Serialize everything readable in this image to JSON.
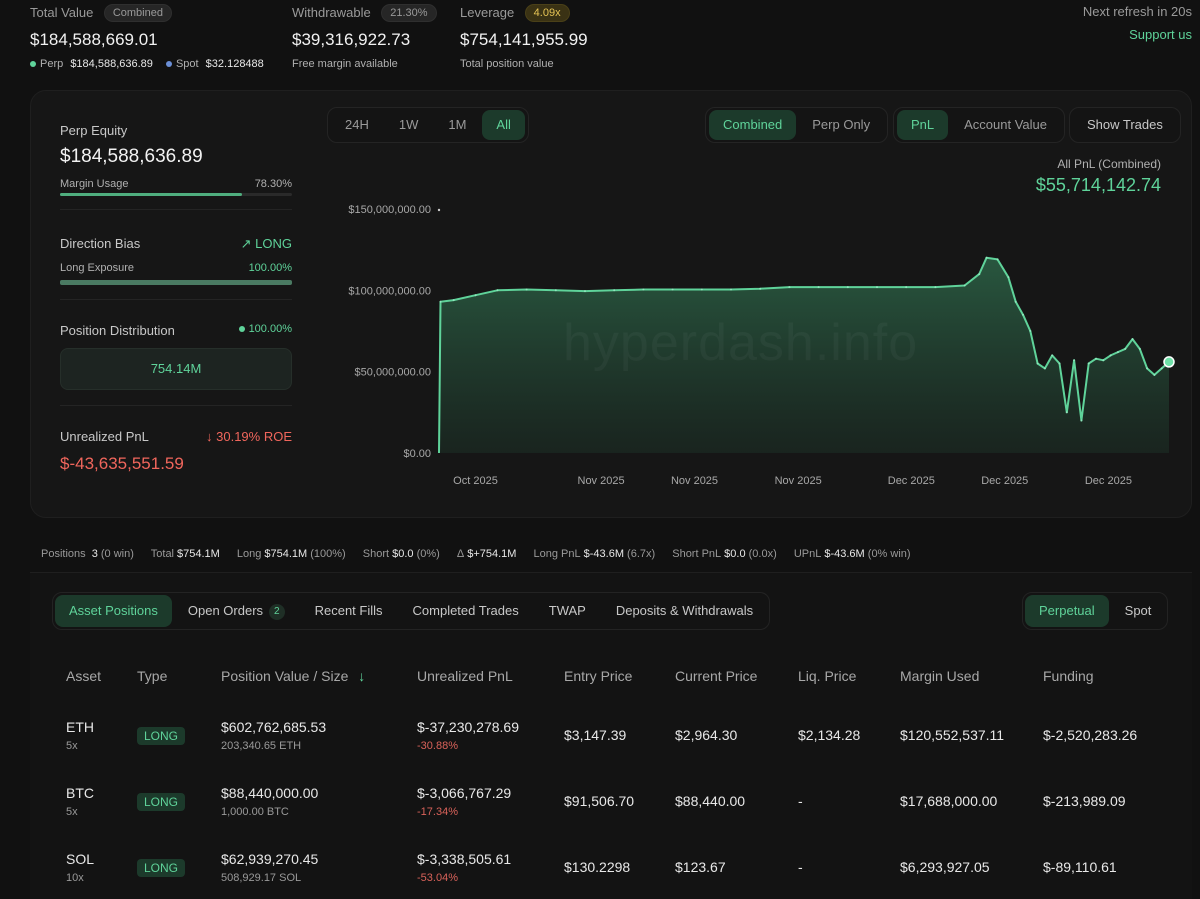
{
  "summary": {
    "total_value": {
      "label": "Total Value",
      "tag": "Combined",
      "value": "$184,588,669.01",
      "perp_label": "Perp",
      "perp_value": "$184,588,636.89",
      "spot_label": "Spot",
      "spot_value": "$32.128488"
    },
    "withdrawable": {
      "label": "Withdrawable",
      "tag": "21.30%",
      "value": "$39,316,922.73",
      "sub": "Free margin available"
    },
    "leverage": {
      "label": "Leverage",
      "tag": "4.09x",
      "value": "$754,141,955.99",
      "sub": "Total position value"
    },
    "refresh": "Next refresh in 20s",
    "support": "Support us"
  },
  "left": {
    "perp_equity_label": "Perp Equity",
    "perp_equity_value": "$184,588,636.89",
    "margin_usage_label": "Margin Usage",
    "margin_usage_value": "78.30%",
    "margin_usage_fraction": 0.783,
    "direction_label": "Direction Bias",
    "direction_value": "LONG",
    "long_exposure_label": "Long Exposure",
    "long_exposure_value": "100.00%",
    "long_exposure_fraction": 1.0,
    "distribution_label": "Position Distribution",
    "distribution_value": "100.00%",
    "distribution_box": "754.14M",
    "upnl_label": "Unrealized PnL",
    "upnl_roe": "30.19% ROE",
    "upnl_value": "$-43,635,551.59"
  },
  "chart_controls": {
    "ranges": [
      "24H",
      "1W",
      "1M",
      "All"
    ],
    "active_range": "All",
    "modes": [
      "Combined",
      "Perp Only"
    ],
    "active_mode": "Combined",
    "metrics": [
      "PnL",
      "Account Value"
    ],
    "active_metric": "PnL",
    "show_trades": "Show Trades",
    "pnl_label": "All PnL (Combined)",
    "pnl_value": "$55,714,142.74",
    "watermark": "hyperdash.info"
  },
  "chart_data": {
    "type": "area",
    "y_ticks": [
      "$150,000,000.00",
      "$100,000,000.00",
      "$50,000,000.00",
      "$0.00"
    ],
    "x_ticks": [
      "Oct 2025",
      "Nov 2025",
      "Nov 2025",
      "Nov 2025",
      "Dec 2025",
      "Dec 2025",
      "Dec 2025"
    ],
    "ylim": [
      0,
      150000000
    ],
    "x": [
      0,
      0.2,
      2,
      5,
      8,
      12,
      16,
      20,
      24,
      28,
      32,
      36,
      40,
      44,
      48,
      52,
      56,
      60,
      64,
      68,
      72,
      74,
      75,
      76.5,
      78,
      79,
      80,
      81,
      82,
      83,
      84,
      85,
      86,
      87,
      88,
      89,
      90,
      91,
      92,
      93,
      94,
      95,
      96,
      97,
      98,
      99,
      100
    ],
    "values": [
      0,
      93000000,
      94000000,
      97000000,
      100000000,
      100500000,
      100000000,
      99500000,
      100000000,
      100500000,
      100500000,
      100500000,
      100500000,
      101000000,
      102000000,
      102000000,
      102000000,
      102000000,
      102000000,
      102000000,
      103000000,
      110000000,
      120000000,
      119000000,
      108000000,
      93000000,
      85000000,
      75000000,
      55000000,
      52000000,
      60000000,
      55000000,
      25000000,
      57000000,
      20000000,
      55000000,
      58000000,
      57000000,
      60000000,
      62000000,
      64000000,
      70000000,
      64000000,
      52000000,
      48000000,
      52000000,
      56000000
    ],
    "grid": false,
    "legend": "none"
  },
  "stats": {
    "positions_label": "Positions",
    "positions_value": "3",
    "positions_win": "(0 win)",
    "total_label": "Total",
    "total_value": "$754.1M",
    "long_label": "Long",
    "long_value": "$754.1M",
    "long_pct": "(100%)",
    "short_label": "Short",
    "short_value": "$0.0",
    "short_pct": "(0%)",
    "delta_label": "Δ",
    "delta_value": "$+754.1M",
    "long_pnl_label": "Long PnL",
    "long_pnl_value": "$-43.6M",
    "long_pnl_x": "(6.7x)",
    "short_pnl_label": "Short PnL",
    "short_pnl_value": "$0.0",
    "short_pnl_x": "(0.0x)",
    "upnl_label": "UPnL",
    "upnl_value": "$-43.6M",
    "upnl_win": "(0% win)"
  },
  "tabs": {
    "items": [
      "Asset Positions",
      "Open Orders",
      "Recent Fills",
      "Completed Trades",
      "TWAP",
      "Deposits & Withdrawals"
    ],
    "open_orders_count": "2",
    "market": [
      "Perpetual",
      "Spot"
    ]
  },
  "table": {
    "headers": [
      "Asset",
      "Type",
      "Position Value / Size",
      "Unrealized PnL",
      "Entry Price",
      "Current Price",
      "Liq. Price",
      "Margin Used",
      "Funding"
    ],
    "rows": [
      {
        "asset": "ETH",
        "lev": "5x",
        "type": "LONG",
        "value": "$602,762,685.53",
        "size": "203,340.65 ETH",
        "upnl": "$-37,230,278.69",
        "upnl_pct": "-30.88%",
        "entry": "$3,147.39",
        "current": "$2,964.30",
        "liq": "$2,134.28",
        "margin": "$120,552,537.11",
        "funding": "$-2,520,283.26"
      },
      {
        "asset": "BTC",
        "lev": "5x",
        "type": "LONG",
        "value": "$88,440,000.00",
        "size": "1,000.00 BTC",
        "upnl": "$-3,066,767.29",
        "upnl_pct": "-17.34%",
        "entry": "$91,506.70",
        "current": "$88,440.00",
        "liq": "-",
        "margin": "$17,688,000.00",
        "funding": "$-213,989.09"
      },
      {
        "asset": "SOL",
        "lev": "10x",
        "type": "LONG",
        "value": "$62,939,270.45",
        "size": "508,929.17 SOL",
        "upnl": "$-3,338,505.61",
        "upnl_pct": "-53.04%",
        "entry": "$130.2298",
        "current": "$123.67",
        "liq": "-",
        "margin": "$6,293,927.05",
        "funding": "$-89,110.61"
      }
    ]
  }
}
